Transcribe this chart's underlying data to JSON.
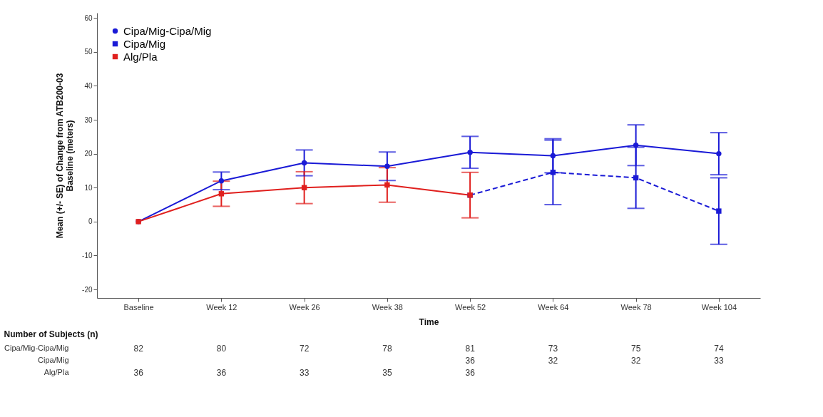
{
  "chart_data": {
    "type": "line",
    "xlabel": "Time",
    "ylabel": "Mean (+/- SE) of Change from ATB200-03 Baseline (meters)",
    "categories": [
      "Baseline",
      "Week 12",
      "Week 26",
      "Week 38",
      "Week 52",
      "Week 64",
      "Week 78",
      "Week 104"
    ],
    "ylim": [
      -22.5,
      61.5
    ],
    "yticks": [
      -20,
      -10,
      0,
      10,
      20,
      30,
      40,
      50,
      60
    ],
    "legend": "top left",
    "grid": false,
    "series": [
      {
        "name": "Cipa/Mig-Cipa/Mig",
        "color": "#1a1ad6",
        "marker": "circle",
        "line_style": "solid",
        "values": [
          0,
          12.0,
          17.3,
          16.3,
          20.4,
          19.4,
          22.5,
          20.0
        ],
        "errors": [
          null,
          2.6,
          3.8,
          4.2,
          4.7,
          5.0,
          6.0,
          6.2
        ]
      },
      {
        "name": "Cipa/Mig",
        "color": "#1a1ad6",
        "marker": "square",
        "line_style": "dashed",
        "values": [
          null,
          null,
          null,
          null,
          7.8,
          14.5,
          12.9,
          3.1
        ],
        "errors": [
          null,
          null,
          null,
          null,
          null,
          9.5,
          9.0,
          9.8
        ]
      },
      {
        "name": "Alg/Pla",
        "color": "#e0201e",
        "marker": "square",
        "line_style": "solid",
        "values": [
          0,
          8.2,
          10.0,
          10.8,
          7.8,
          null,
          null,
          null
        ],
        "errors": [
          null,
          3.7,
          4.7,
          5.1,
          6.7,
          null,
          null,
          null
        ]
      }
    ],
    "annotations": [
      "Number of Subjects (n)",
      "Cipa/Mig-Cipa/Mig",
      "82",
      "80",
      "72",
      "78",
      "81",
      "73",
      "75",
      "74",
      "Cipa/Mig",
      null,
      null,
      null,
      null,
      "36",
      "32",
      "32",
      "33",
      "Alg/Pla",
      "36",
      "36",
      "33",
      "35",
      "36",
      null,
      null,
      null
    ]
  }
}
